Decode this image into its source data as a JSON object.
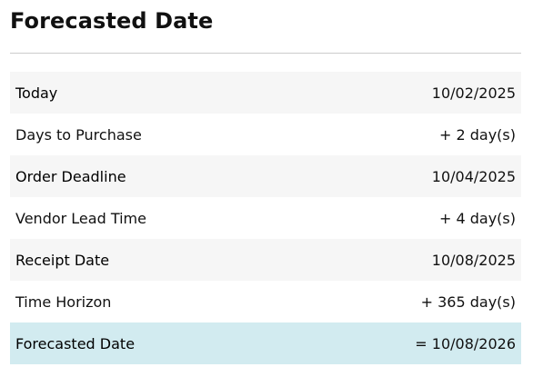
{
  "header": {
    "title": "Forecasted Date"
  },
  "rows": [
    {
      "label": "Today",
      "value": "10/02/2025"
    },
    {
      "label": "Days to Purchase",
      "value": "+ 2 day(s)"
    },
    {
      "label": "Order Deadline",
      "value": "10/04/2025"
    },
    {
      "label": "Vendor Lead Time",
      "value": "+ 4 day(s)"
    },
    {
      "label": "Receipt Date",
      "value": "10/08/2025"
    },
    {
      "label": "Time Horizon",
      "value": "+ 365 day(s)"
    },
    {
      "label": "Forecasted Date",
      "value": "= 10/08/2026"
    }
  ],
  "colors": {
    "stripe": "#f6f6f6",
    "highlight": "#d2ebf0",
    "divider": "#cccccc"
  }
}
